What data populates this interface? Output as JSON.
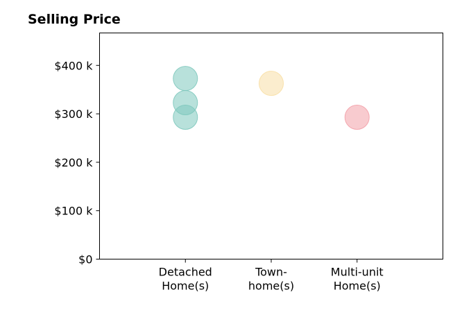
{
  "chart_data": {
    "type": "scatter",
    "title": "Selling Price",
    "xlabel": "",
    "ylabel": "",
    "categories": [
      {
        "lines": [
          "Detached",
          "Home(s)"
        ]
      },
      {
        "lines": [
          "Town-",
          "home(s)"
        ]
      },
      {
        "lines": [
          "Multi-unit",
          "Home(s)"
        ]
      }
    ],
    "yticks": [
      {
        "value": 0,
        "label": "$0"
      },
      {
        "value": 100000,
        "label": "$100 k"
      },
      {
        "value": 200000,
        "label": "$200 k"
      },
      {
        "value": 300000,
        "label": "$300 k"
      },
      {
        "value": 400000,
        "label": "$400 k"
      }
    ],
    "ylim": [
      0,
      467000
    ],
    "xlim": [
      -1,
      3
    ],
    "grid": false,
    "legend": "none",
    "series": [
      {
        "category": 0,
        "values": [
          373000,
          323000,
          293000
        ],
        "color": "#7ec8bd"
      },
      {
        "category": 1,
        "values": [
          363000
        ],
        "color": "#f8dfa5"
      },
      {
        "category": 2,
        "values": [
          293000
        ],
        "color": "#f3a0a8"
      }
    ]
  }
}
